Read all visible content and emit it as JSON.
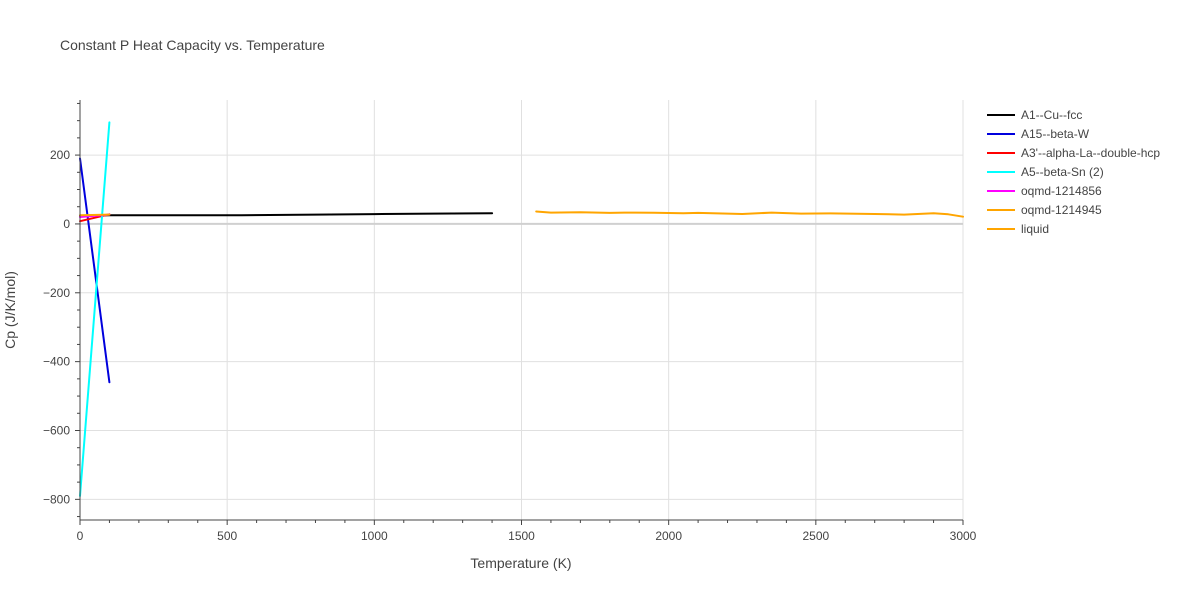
{
  "chart_data": {
    "type": "line",
    "title": "Constant P Heat Capacity vs. Temperature",
    "xlabel": "Temperature (K)",
    "ylabel": "Cp (J/K/mol)",
    "xlim": [
      0,
      3000
    ],
    "ylim": [
      -860,
      360
    ],
    "x_ticks": [
      0,
      500,
      1000,
      1500,
      2000,
      2500,
      3000
    ],
    "x_tick_labels": [
      "0",
      "500",
      "1000",
      "1500",
      "2000",
      "2500",
      "3000"
    ],
    "y_ticks": [
      -800,
      -600,
      -400,
      -200,
      0,
      200
    ],
    "y_tick_labels": [
      "−800",
      "−600",
      "−400",
      "−200",
      "0",
      "200"
    ],
    "grid": true,
    "legend_position": "right",
    "series": [
      {
        "name": "A1--Cu--fcc",
        "color": "#000000",
        "x": [
          0,
          100,
          300,
          550,
          800,
          1000,
          1200,
          1400
        ],
        "y": [
          24,
          25,
          25,
          25.5,
          27,
          28.5,
          30,
          31
        ]
      },
      {
        "name": "A15--beta-W",
        "color": "#0000dd",
        "x": [
          0,
          100
        ],
        "y": [
          190,
          -460
        ]
      },
      {
        "name": "A3'--alpha-La--double-hcp",
        "color": "#ff0000",
        "x": [
          0,
          100
        ],
        "y": [
          8,
          28
        ]
      },
      {
        "name": "A5--beta-Sn (2)",
        "color": "#00ffff",
        "x": [
          0,
          100
        ],
        "y": [
          -790,
          295
        ]
      },
      {
        "name": "oqmd-1214856",
        "color": "#ff00ff",
        "x": [
          0,
          100
        ],
        "y": [
          20,
          27
        ]
      },
      {
        "name": "oqmd-1214945",
        "color": "#ffa500",
        "x": [
          0,
          100
        ],
        "y": [
          25,
          27
        ]
      },
      {
        "name": "liquid",
        "color": "#ffa500",
        "x": [
          1550,
          1600,
          1700,
          1800,
          1850,
          1950,
          2050,
          2100,
          2250,
          2350,
          2450,
          2550,
          2700,
          2800,
          2900,
          2950,
          3000
        ],
        "y": [
          36,
          33,
          34,
          32,
          33,
          32.5,
          31,
          32,
          29,
          33,
          30,
          30.5,
          29,
          27,
          31,
          28,
          21
        ]
      }
    ]
  }
}
